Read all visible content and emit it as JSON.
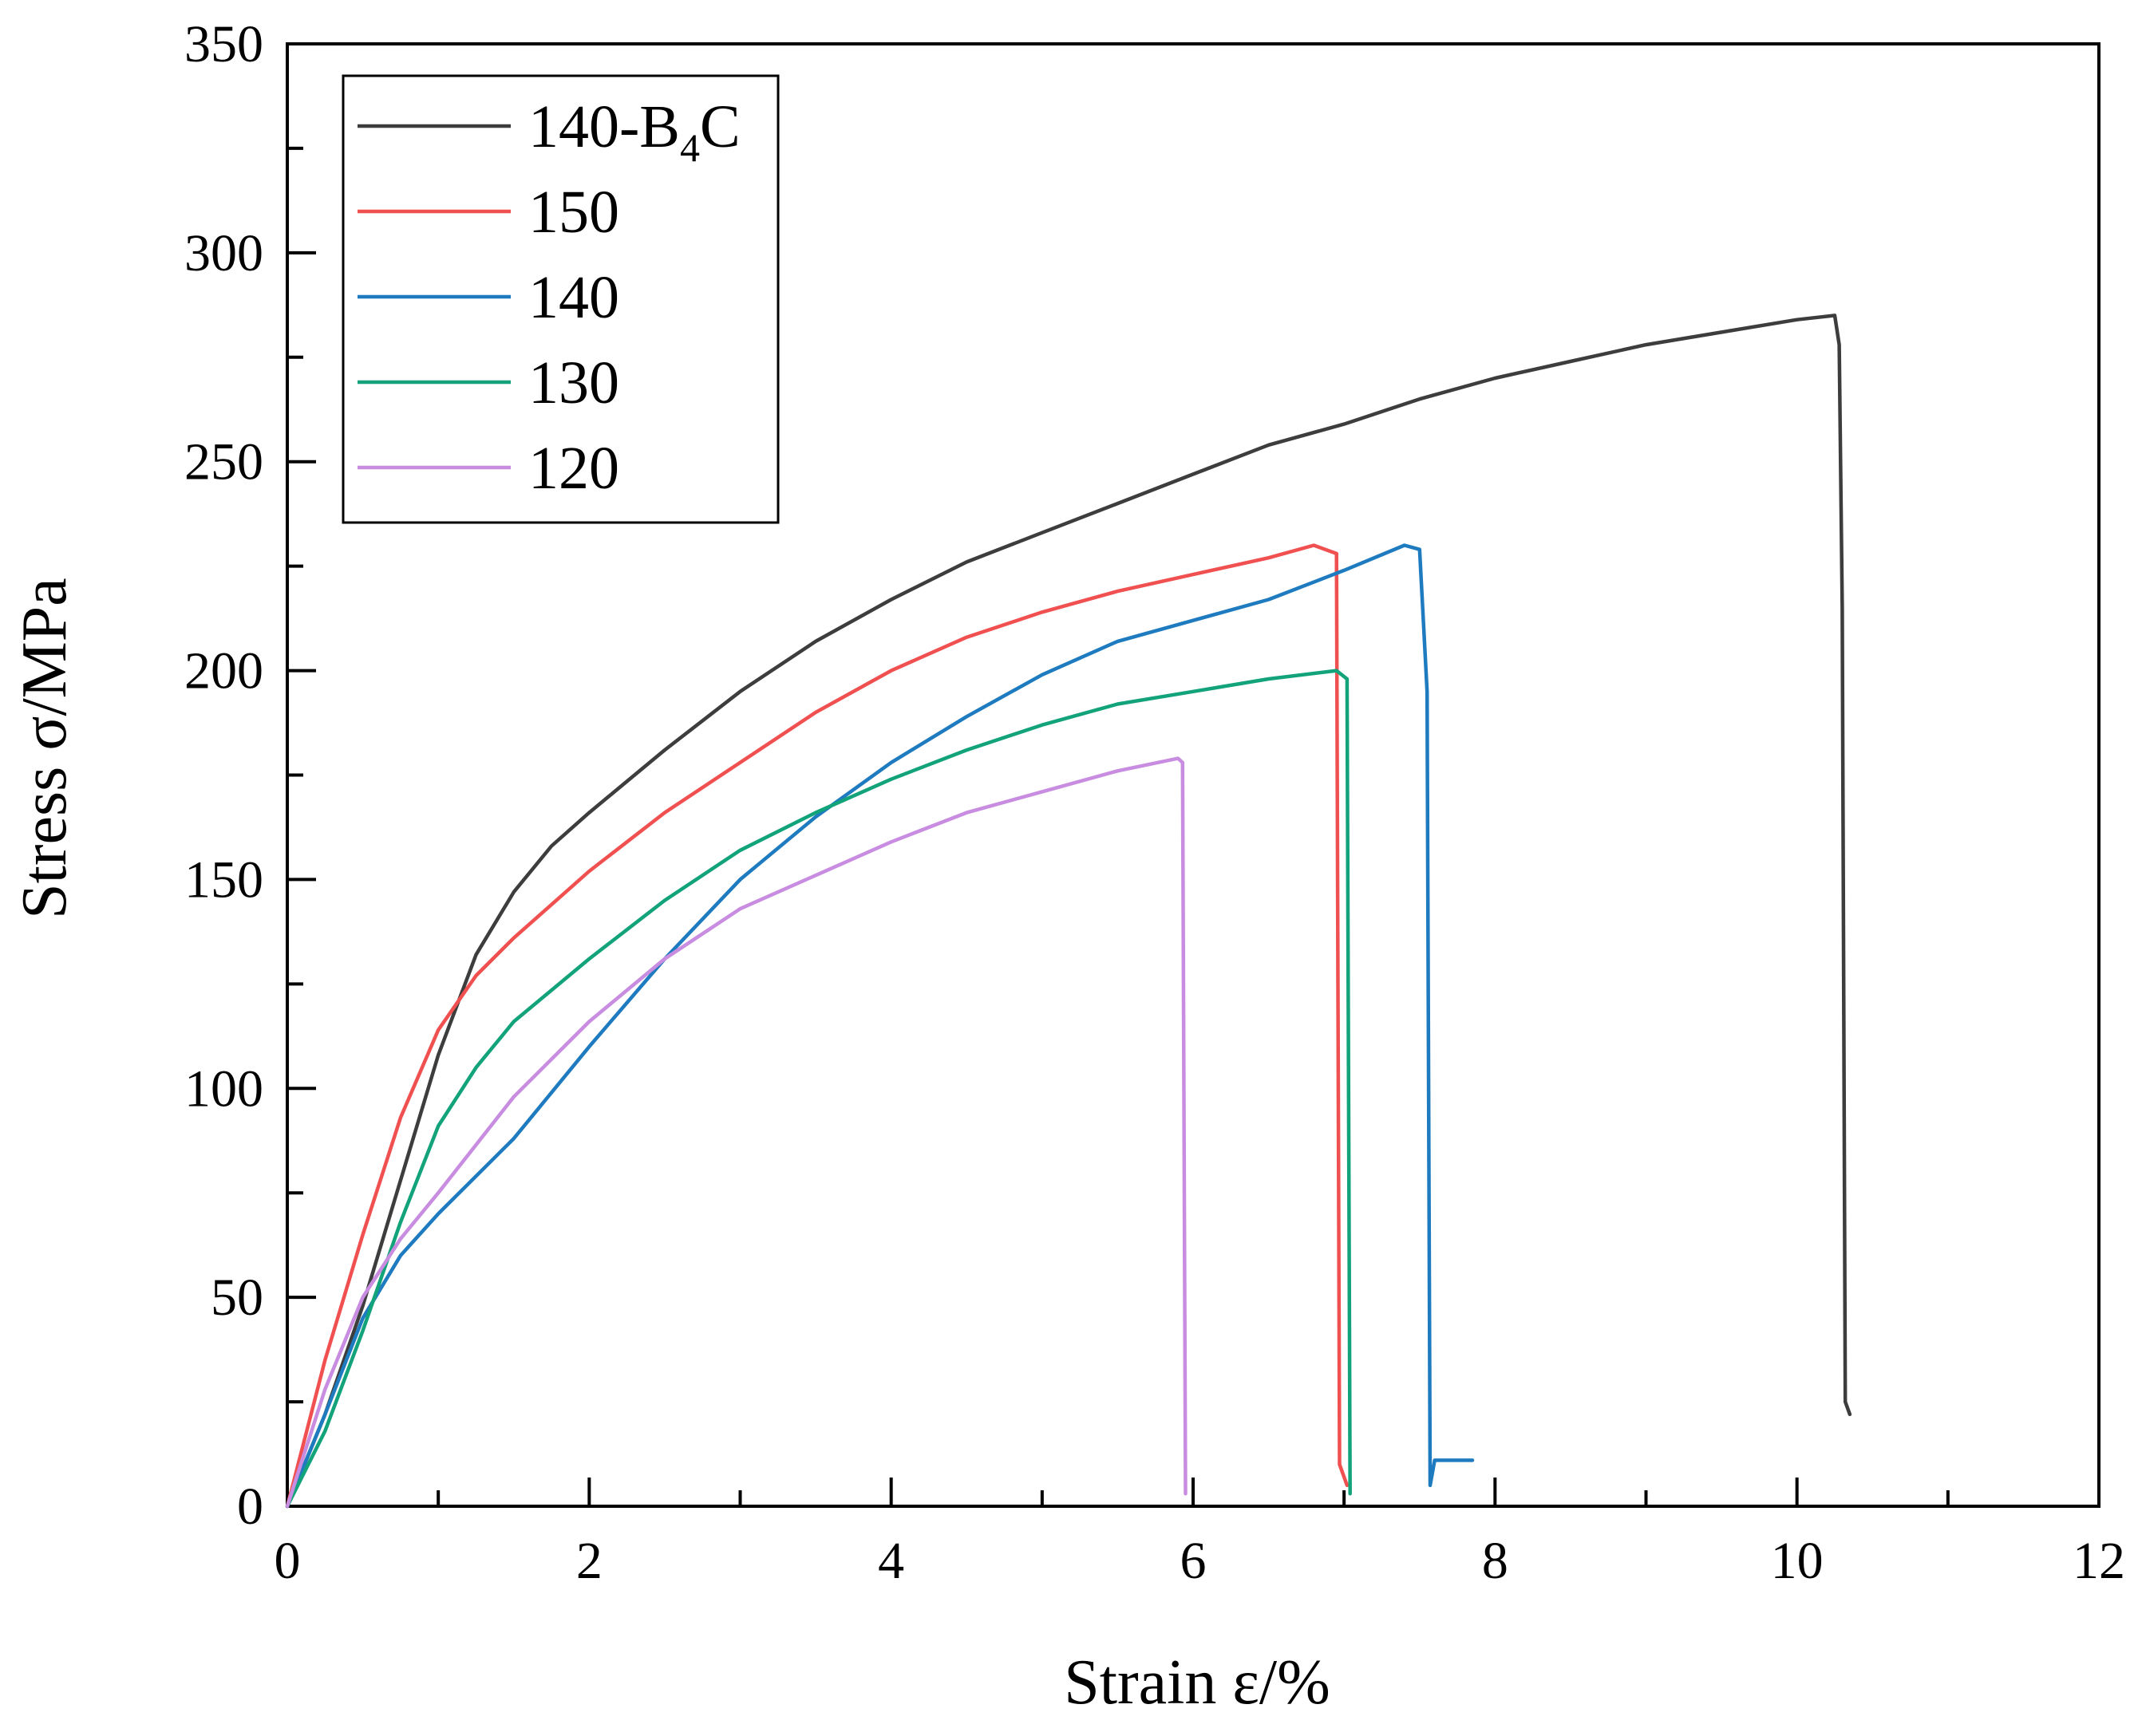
{
  "chart_data": {
    "type": "line",
    "title": "",
    "xlabel": "Strain ε/%",
    "ylabel": "Stress σ/MPa",
    "xlim": [
      0,
      12
    ],
    "ylim": [
      0,
      350
    ],
    "x_ticks": [
      "0",
      "2",
      "4",
      "6",
      "8",
      "10",
      "12"
    ],
    "x_tick_values": [
      0,
      2,
      4,
      6,
      8,
      10,
      12
    ],
    "y_ticks": [
      "0",
      "50",
      "100",
      "150",
      "200",
      "250",
      "300",
      "350"
    ],
    "y_tick_values": [
      0,
      50,
      100,
      150,
      200,
      250,
      300,
      350
    ],
    "grid": false,
    "legend_position": "top-left",
    "series": [
      {
        "name": "140-B4C",
        "legend_main": "140-B",
        "legend_sub": "4",
        "legend_tail": "C",
        "color": "#3d3d3d",
        "points": [
          [
            0,
            0
          ],
          [
            0.25,
            22
          ],
          [
            0.5,
            48
          ],
          [
            0.75,
            78
          ],
          [
            1.0,
            108
          ],
          [
            1.25,
            132
          ],
          [
            1.5,
            147
          ],
          [
            1.75,
            158
          ],
          [
            2.0,
            166
          ],
          [
            2.5,
            181
          ],
          [
            3.0,
            195
          ],
          [
            3.5,
            207
          ],
          [
            4.0,
            217
          ],
          [
            4.5,
            226
          ],
          [
            5.0,
            233
          ],
          [
            5.5,
            240
          ],
          [
            6.0,
            247
          ],
          [
            6.5,
            254
          ],
          [
            7.0,
            259
          ],
          [
            7.5,
            265
          ],
          [
            8.0,
            270
          ],
          [
            8.5,
            274
          ],
          [
            9.0,
            278
          ],
          [
            9.5,
            281
          ],
          [
            10.0,
            284
          ],
          [
            10.25,
            285
          ],
          [
            10.28,
            278
          ],
          [
            10.3,
            215
          ],
          [
            10.32,
            25
          ],
          [
            10.35,
            22
          ]
        ]
      },
      {
        "name": "150",
        "color": "#f05050",
        "points": [
          [
            0,
            0
          ],
          [
            0.25,
            35
          ],
          [
            0.5,
            65
          ],
          [
            0.75,
            93
          ],
          [
            1.0,
            114
          ],
          [
            1.25,
            127
          ],
          [
            1.5,
            136
          ],
          [
            1.75,
            144
          ],
          [
            2.0,
            152
          ],
          [
            2.5,
            166
          ],
          [
            3.0,
            178
          ],
          [
            3.5,
            190
          ],
          [
            4.0,
            200
          ],
          [
            4.5,
            208
          ],
          [
            5.0,
            214
          ],
          [
            5.5,
            219
          ],
          [
            6.0,
            223
          ],
          [
            6.5,
            227
          ],
          [
            6.8,
            230
          ],
          [
            6.95,
            228
          ],
          [
            6.97,
            10
          ],
          [
            7.02,
            5
          ]
        ]
      },
      {
        "name": "140",
        "color": "#1f7bbf",
        "points": [
          [
            0,
            0
          ],
          [
            0.25,
            22
          ],
          [
            0.5,
            45
          ],
          [
            0.75,
            60
          ],
          [
            1.0,
            70
          ],
          [
            1.5,
            88
          ],
          [
            2.0,
            110
          ],
          [
            2.5,
            131
          ],
          [
            3.0,
            150
          ],
          [
            3.5,
            165
          ],
          [
            4.0,
            178
          ],
          [
            4.5,
            189
          ],
          [
            5.0,
            199
          ],
          [
            5.5,
            207
          ],
          [
            6.0,
            212
          ],
          [
            6.5,
            217
          ],
          [
            7.0,
            224
          ],
          [
            7.4,
            230
          ],
          [
            7.5,
            229
          ],
          [
            7.55,
            195
          ],
          [
            7.57,
            5
          ],
          [
            7.6,
            11
          ],
          [
            7.85,
            11
          ]
        ]
      },
      {
        "name": "130",
        "color": "#12a37a",
        "points": [
          [
            0,
            0
          ],
          [
            0.25,
            18
          ],
          [
            0.5,
            42
          ],
          [
            0.75,
            68
          ],
          [
            1.0,
            91
          ],
          [
            1.25,
            105
          ],
          [
            1.5,
            116
          ],
          [
            2.0,
            131
          ],
          [
            2.5,
            145
          ],
          [
            3.0,
            157
          ],
          [
            3.5,
            166
          ],
          [
            4.0,
            174
          ],
          [
            4.5,
            181
          ],
          [
            5.0,
            187
          ],
          [
            5.5,
            192
          ],
          [
            6.0,
            195
          ],
          [
            6.5,
            198
          ],
          [
            6.95,
            200
          ],
          [
            7.02,
            198
          ],
          [
            7.04,
            3
          ]
        ]
      },
      {
        "name": "120",
        "color": "#c88de0",
        "points": [
          [
            0,
            0
          ],
          [
            0.25,
            28
          ],
          [
            0.5,
            50
          ],
          [
            0.75,
            64
          ],
          [
            1.0,
            75
          ],
          [
            1.5,
            98
          ],
          [
            2.0,
            116
          ],
          [
            2.5,
            131
          ],
          [
            3.0,
            143
          ],
          [
            3.5,
            151
          ],
          [
            4.0,
            159
          ],
          [
            4.5,
            166
          ],
          [
            5.0,
            171
          ],
          [
            5.5,
            176
          ],
          [
            5.9,
            179
          ],
          [
            5.93,
            178
          ],
          [
            5.95,
            3
          ]
        ]
      }
    ]
  }
}
